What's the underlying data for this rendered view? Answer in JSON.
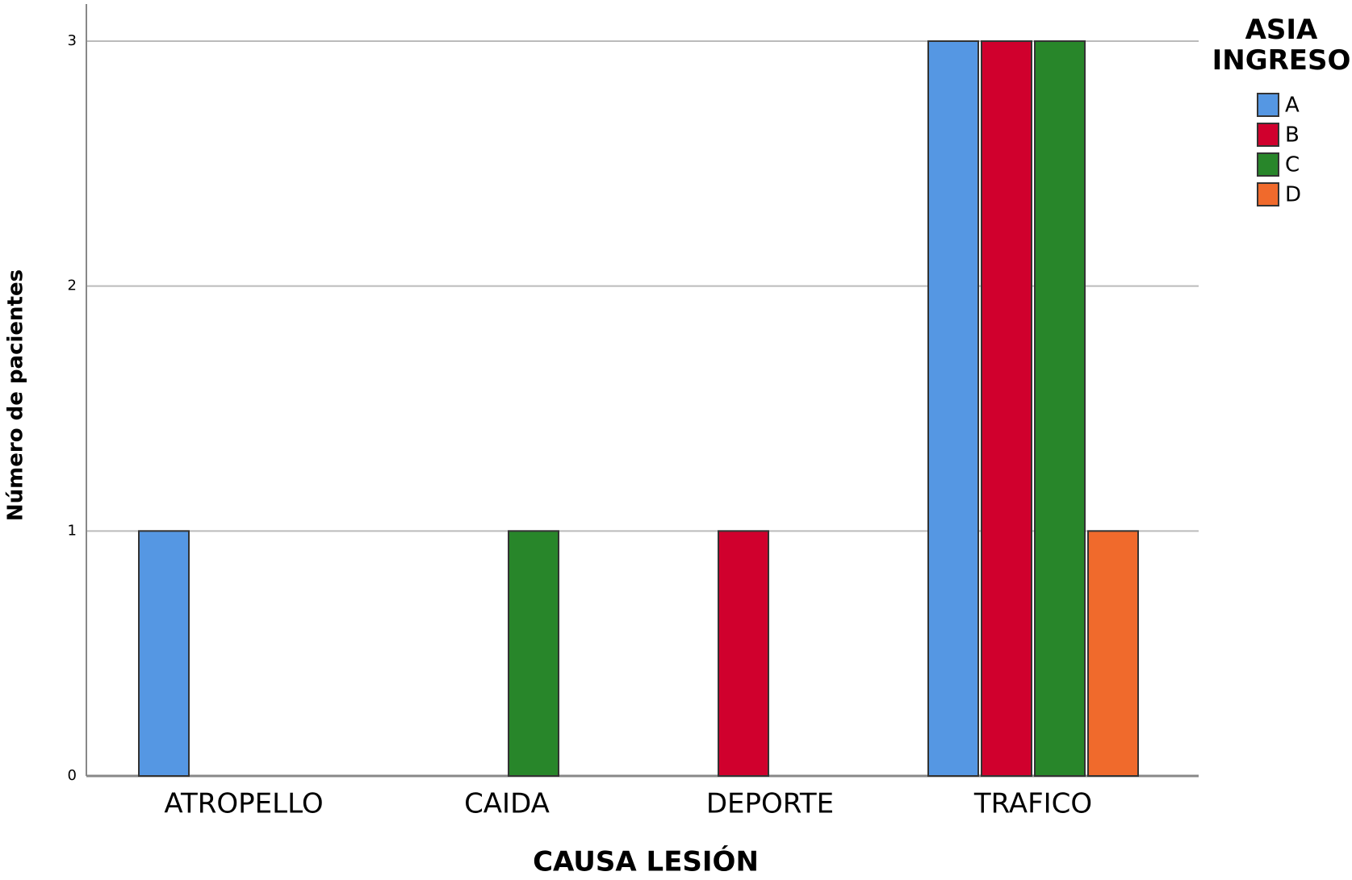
{
  "chart_data": {
    "type": "bar",
    "x_label": "CAUSA LESIÓN",
    "y_label": "Número de pacientes",
    "legend_title": "ASIA INGRESO",
    "categories": [
      "ATROPELLO",
      "CAIDA",
      "DEPORTE",
      "TRAFICO"
    ],
    "series": [
      {
        "name": "A",
        "color": "#5597e3",
        "values": [
          1,
          null,
          null,
          3
        ]
      },
      {
        "name": "B",
        "color": "#d0002d",
        "values": [
          null,
          null,
          1,
          3
        ]
      },
      {
        "name": "C",
        "color": "#28862a",
        "values": [
          null,
          1,
          null,
          3
        ]
      },
      {
        "name": "D",
        "color": "#f06a2c",
        "values": [
          null,
          null,
          null,
          1
        ]
      }
    ],
    "ylim": [
      0,
      3
    ],
    "yticks": [
      0,
      1,
      2,
      3
    ],
    "grid": true,
    "legend": "right"
  }
}
